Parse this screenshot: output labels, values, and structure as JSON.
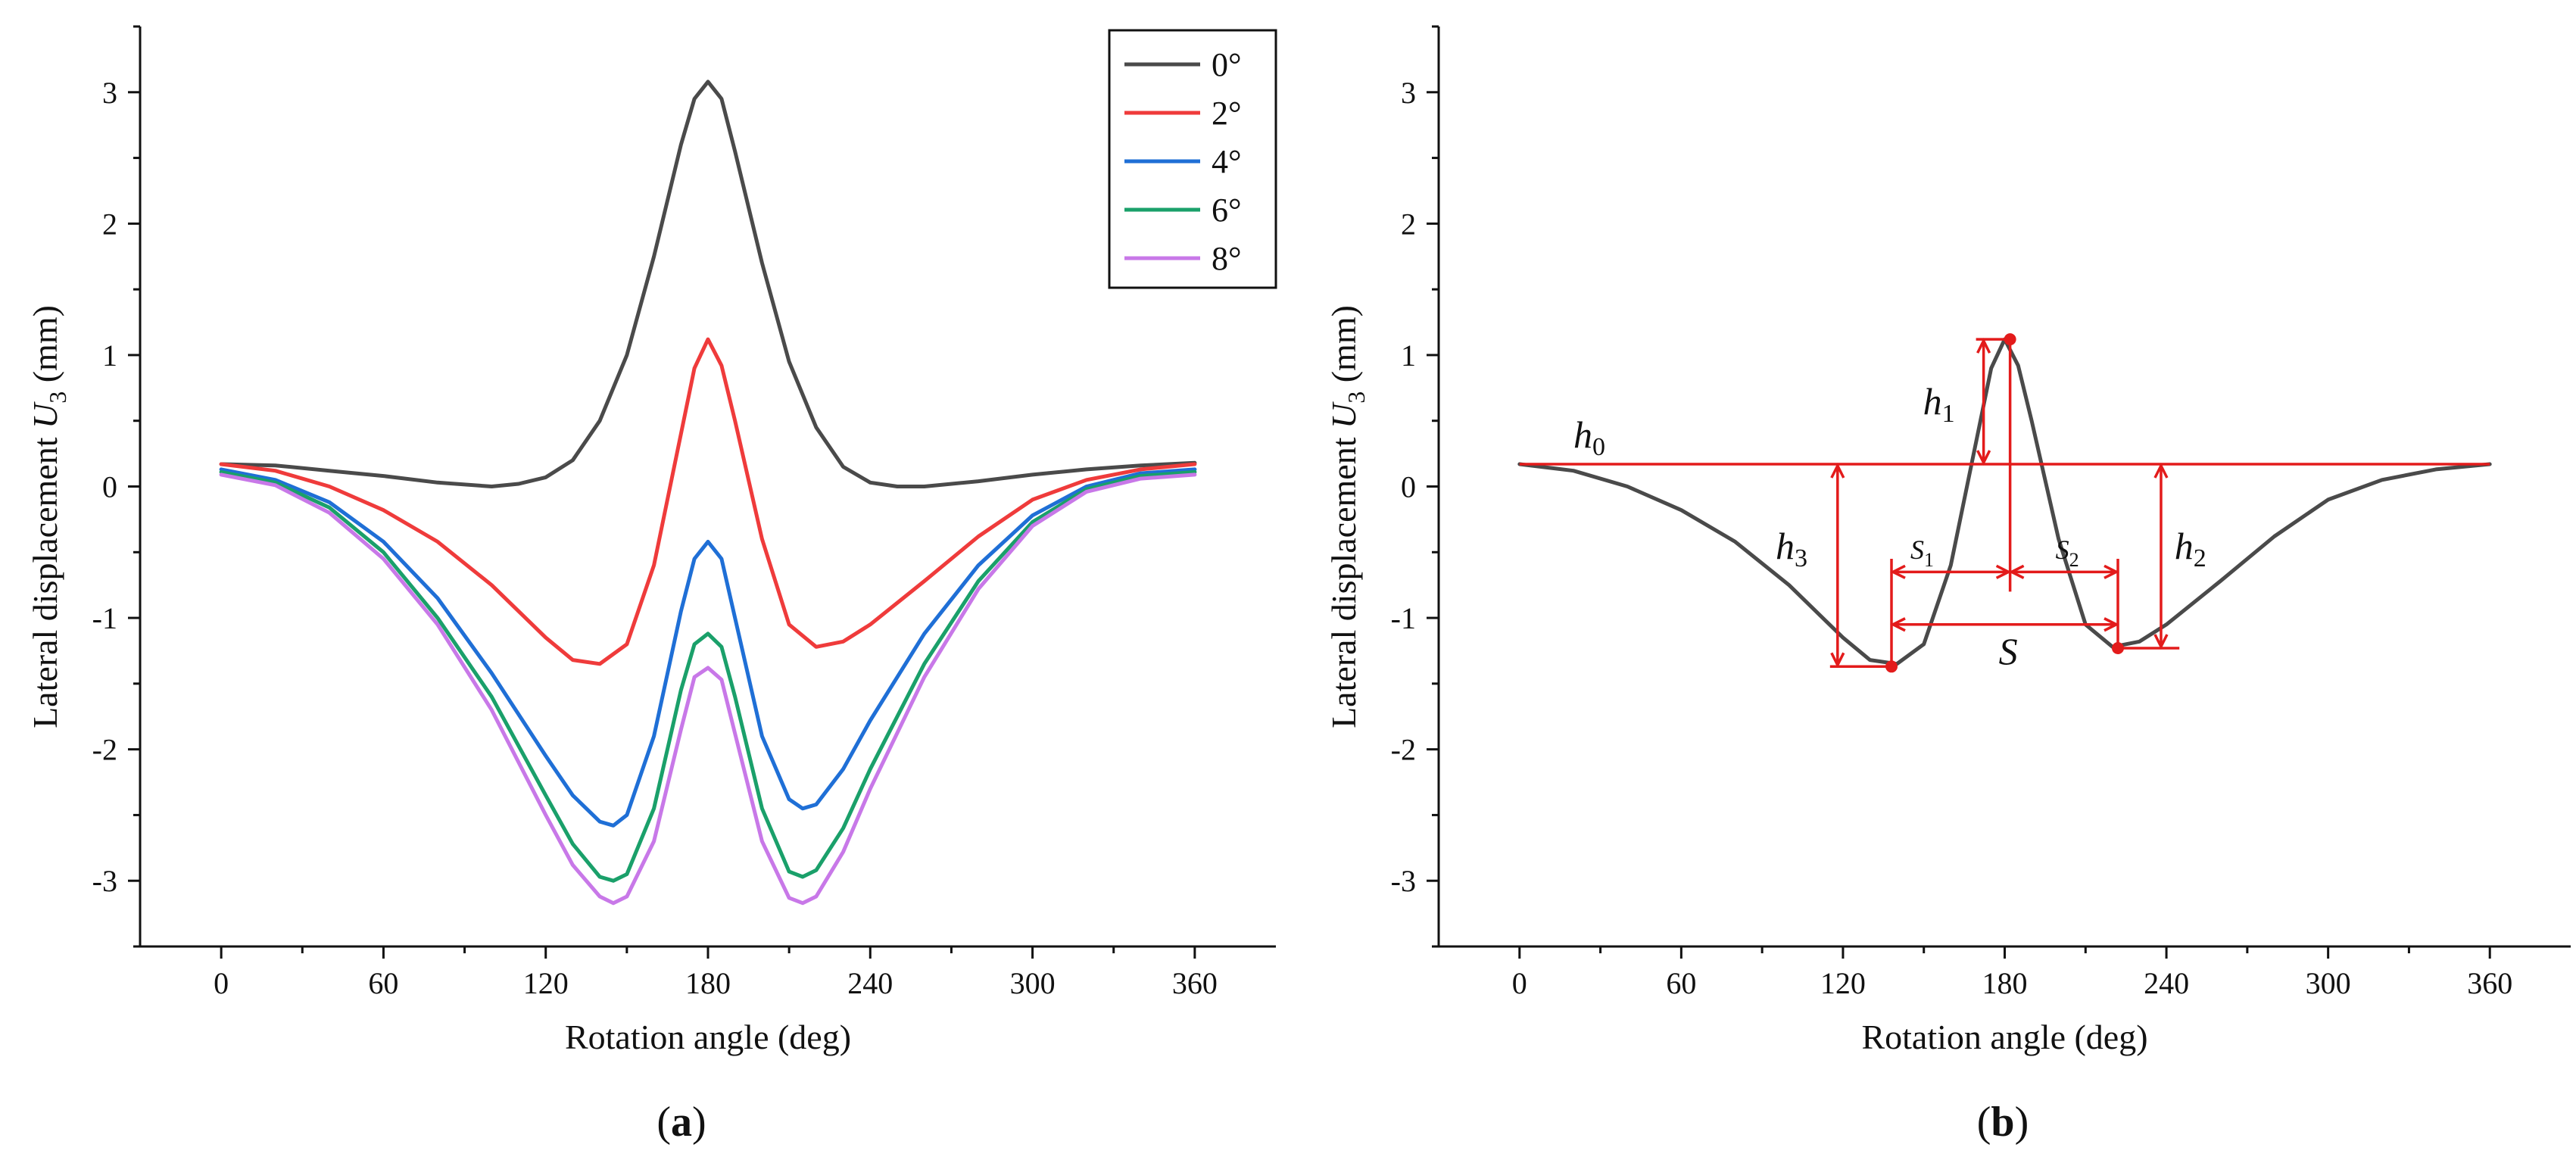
{
  "chart_data": [
    {
      "type": "line",
      "panel_label": "(a)",
      "xlabel": "Rotation angle (deg)",
      "ylabel": "Lateral displacement",
      "ylabel_var": "U",
      "ylabel_sub": "3",
      "ylabel_unit": "(mm)",
      "xlim": [
        -30,
        390
      ],
      "ylim": [
        -3.5,
        3.5
      ],
      "xticks": [
        0,
        60,
        120,
        180,
        240,
        300,
        360
      ],
      "yticks": [
        -3,
        -2,
        -1,
        0,
        1,
        2,
        3
      ],
      "legend_position": "top-right",
      "series": [
        {
          "name": "0°",
          "color": "#4a4a4a",
          "x": [
            0,
            20,
            40,
            60,
            80,
            100,
            110,
            120,
            130,
            140,
            150,
            160,
            170,
            175,
            180,
            185,
            190,
            200,
            210,
            220,
            230,
            240,
            250,
            260,
            280,
            300,
            320,
            340,
            360
          ],
          "y": [
            0.17,
            0.16,
            0.12,
            0.08,
            0.03,
            0.0,
            0.02,
            0.07,
            0.2,
            0.5,
            1.0,
            1.75,
            2.6,
            2.95,
            3.08,
            2.95,
            2.55,
            1.7,
            0.95,
            0.45,
            0.15,
            0.03,
            0.0,
            0.0,
            0.04,
            0.09,
            0.13,
            0.16,
            0.18
          ]
        },
        {
          "name": "2°",
          "color": "#ef3b3b",
          "x": [
            0,
            20,
            40,
            60,
            80,
            100,
            120,
            130,
            140,
            150,
            160,
            170,
            175,
            180,
            185,
            190,
            200,
            210,
            220,
            230,
            240,
            260,
            280,
            300,
            320,
            340,
            360
          ],
          "y": [
            0.17,
            0.12,
            0.0,
            -0.18,
            -0.42,
            -0.75,
            -1.15,
            -1.32,
            -1.35,
            -1.2,
            -0.6,
            0.4,
            0.9,
            1.12,
            0.92,
            0.5,
            -0.4,
            -1.05,
            -1.22,
            -1.18,
            -1.05,
            -0.72,
            -0.38,
            -0.1,
            0.05,
            0.13,
            0.17
          ]
        },
        {
          "name": "4°",
          "color": "#1f6fd6",
          "x": [
            0,
            20,
            40,
            60,
            80,
            100,
            120,
            130,
            140,
            145,
            150,
            160,
            170,
            175,
            180,
            185,
            190,
            200,
            210,
            215,
            220,
            230,
            240,
            260,
            280,
            300,
            320,
            340,
            360
          ],
          "y": [
            0.13,
            0.05,
            -0.12,
            -0.42,
            -0.85,
            -1.42,
            -2.05,
            -2.35,
            -2.55,
            -2.58,
            -2.5,
            -1.9,
            -0.95,
            -0.55,
            -0.42,
            -0.55,
            -1.0,
            -1.9,
            -2.38,
            -2.45,
            -2.42,
            -2.15,
            -1.78,
            -1.12,
            -0.6,
            -0.22,
            0.0,
            0.1,
            0.13
          ]
        },
        {
          "name": "6°",
          "color": "#1aa06a",
          "x": [
            0,
            20,
            40,
            60,
            80,
            100,
            120,
            130,
            140,
            145,
            150,
            160,
            170,
            175,
            180,
            185,
            190,
            200,
            210,
            215,
            220,
            230,
            240,
            260,
            280,
            300,
            320,
            340,
            360
          ],
          "y": [
            0.11,
            0.03,
            -0.16,
            -0.5,
            -1.0,
            -1.6,
            -2.35,
            -2.72,
            -2.97,
            -3.0,
            -2.95,
            -2.45,
            -1.55,
            -1.2,
            -1.12,
            -1.22,
            -1.6,
            -2.45,
            -2.93,
            -2.97,
            -2.92,
            -2.6,
            -2.15,
            -1.35,
            -0.72,
            -0.27,
            -0.02,
            0.08,
            0.11
          ]
        },
        {
          "name": "8°",
          "color": "#c878e8",
          "x": [
            0,
            20,
            40,
            60,
            80,
            100,
            120,
            130,
            140,
            145,
            150,
            160,
            170,
            175,
            180,
            185,
            190,
            200,
            210,
            215,
            220,
            230,
            240,
            260,
            280,
            300,
            320,
            340,
            360
          ],
          "y": [
            0.09,
            0.01,
            -0.2,
            -0.55,
            -1.05,
            -1.7,
            -2.5,
            -2.88,
            -3.12,
            -3.17,
            -3.12,
            -2.7,
            -1.85,
            -1.45,
            -1.38,
            -1.47,
            -1.88,
            -2.7,
            -3.13,
            -3.17,
            -3.12,
            -2.78,
            -2.3,
            -1.45,
            -0.78,
            -0.3,
            -0.04,
            0.06,
            0.09
          ]
        }
      ]
    },
    {
      "type": "line",
      "panel_label": "(b)",
      "xlabel": "Rotation angle (deg)",
      "ylabel": "Lateral displacement",
      "ylabel_var": "U",
      "ylabel_sub": "3",
      "ylabel_unit": "(mm)",
      "xlim": [
        -30,
        390
      ],
      "ylim": [
        -3.5,
        3.5
      ],
      "xticks": [
        0,
        60,
        120,
        180,
        240,
        300,
        360
      ],
      "yticks": [
        -3,
        -2,
        -1,
        0,
        1,
        2,
        3
      ],
      "series": [
        {
          "name": "2°",
          "color": "#4a4a4a",
          "x": [
            0,
            20,
            40,
            60,
            80,
            100,
            120,
            130,
            140,
            150,
            160,
            170,
            175,
            180,
            185,
            190,
            200,
            210,
            220,
            230,
            240,
            260,
            280,
            300,
            320,
            340,
            360
          ],
          "y": [
            0.17,
            0.12,
            0.0,
            -0.18,
            -0.42,
            -0.75,
            -1.15,
            -1.32,
            -1.35,
            -1.2,
            -0.6,
            0.4,
            0.9,
            1.12,
            0.92,
            0.5,
            -0.4,
            -1.05,
            -1.22,
            -1.18,
            -1.05,
            -0.72,
            -0.38,
            -0.1,
            0.05,
            0.13,
            0.17
          ]
        }
      ],
      "annotations": {
        "color": "#e31b1b",
        "baseline_y": 0.17,
        "peak": {
          "x": 182,
          "y": 1.12
        },
        "left_valley": {
          "x": 138,
          "y": -1.37
        },
        "right_valley": {
          "x": 222,
          "y": -1.23
        },
        "labels": {
          "h0": {
            "text": "h",
            "sub": "0"
          },
          "h1": {
            "text": "h",
            "sub": "1"
          },
          "h2": {
            "text": "h",
            "sub": "2"
          },
          "h3": {
            "text": "h",
            "sub": "3"
          },
          "s1": {
            "text": "S",
            "sub": "1"
          },
          "s2": {
            "text": "S",
            "sub": "2"
          },
          "s": {
            "text": "S",
            "sub": ""
          }
        }
      }
    }
  ]
}
